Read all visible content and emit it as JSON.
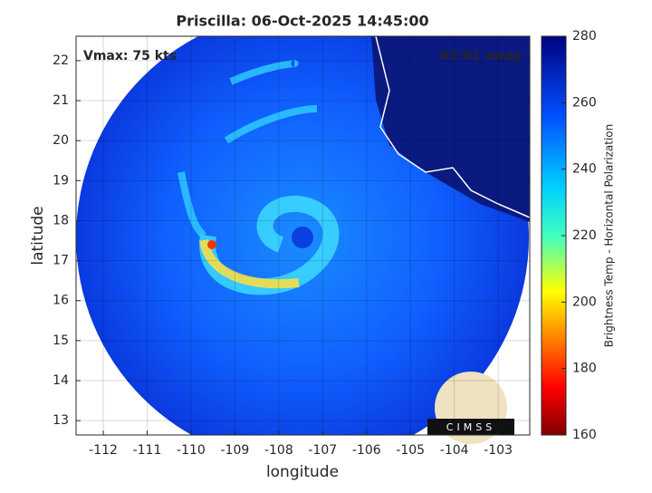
{
  "chart_data": {
    "type": "map",
    "title": "Priscilla: 06-Oct-2025 14:45:00",
    "x_label": "longitude",
    "y_label": "latitude",
    "xlim": [
      -112.62,
      -102.28
    ],
    "ylim": [
      12.64,
      22.61
    ],
    "xticks": [
      -112,
      -111,
      -110,
      -109,
      -108,
      -107,
      -106,
      -105,
      -104,
      -103
    ],
    "yticks": [
      13,
      14,
      15,
      16,
      17,
      18,
      19,
      20,
      21,
      22
    ],
    "grid": true,
    "annotations": [
      "Vmax: 75 kts",
      "03:01 away"
    ],
    "logo_text": "CIMSS",
    "colorbar": {
      "label": "Brightness Temp - Horizontal Polarization",
      "lim": [
        160,
        280
      ],
      "ticks": [
        160,
        180,
        200,
        220,
        240,
        260,
        280
      ]
    }
  }
}
